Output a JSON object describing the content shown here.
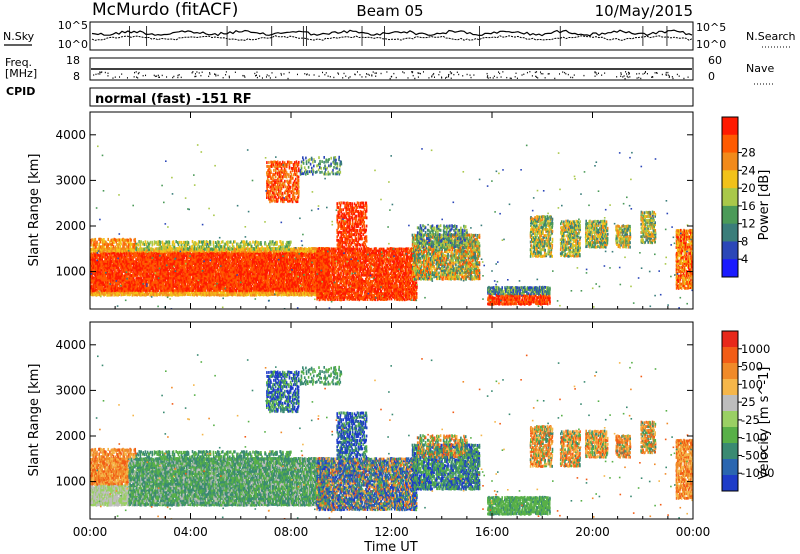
{
  "header": {
    "station": "McMurdo (fitACF)",
    "beam": "Beam 05",
    "date": "10/May/2015",
    "mode": "normal (fast) -151 RF"
  },
  "side_labels": {
    "nsky": "N.Sky",
    "freq": "Freq.",
    "mhz": "[MHz]",
    "cpid": "CPID",
    "nsearch": "N.Search",
    "nave": "Nave"
  },
  "status_axes": {
    "nsky_ticks": [
      "10^5",
      "10^0"
    ],
    "nsearch_ticks": [
      "10^5",
      "10^0"
    ],
    "freq_ticks": [
      "18",
      "8"
    ],
    "nave_ticks": [
      "60",
      "0"
    ]
  },
  "chart_data": [
    {
      "type": "heatmap",
      "name": "power-panel",
      "title": "",
      "xlabel": "",
      "ylabel": "Slant Range [km]",
      "xlim": [
        0,
        24
      ],
      "ylim": [
        180,
        4500
      ],
      "y_ticks": [
        "1000",
        "2000",
        "3000",
        "4000"
      ],
      "colorbar": {
        "label": "Power [dB]",
        "ticks": [
          "4",
          "8",
          "12",
          "16",
          "20",
          "24",
          "28"
        ],
        "colors": [
          "#1b1bff",
          "#2b47b8",
          "#3a7d7a",
          "#4b9a58",
          "#a9c84a",
          "#f2c21a",
          "#f28a1a",
          "#ff5a00",
          "#ff1a00"
        ]
      }
    },
    {
      "type": "heatmap",
      "name": "velocity-panel",
      "title": "",
      "xlabel": "Time UT",
      "ylabel": "Slant Range [km]",
      "xlim": [
        0,
        24
      ],
      "ylim": [
        180,
        4500
      ],
      "x_ticks": [
        "00:00",
        "04:00",
        "08:00",
        "12:00",
        "16:00",
        "20:00",
        "00:00"
      ],
      "y_ticks": [
        "1000",
        "2000",
        "3000",
        "4000"
      ],
      "colorbar": {
        "label": "Velocity [m s^-1]",
        "ticks": [
          "1000",
          "500",
          "100",
          "25",
          "-25",
          "-100",
          "-500",
          "-1000"
        ],
        "colors": [
          "#1e3cc8",
          "#2a66b0",
          "#3a8a72",
          "#58b048",
          "#9ad064",
          "#bdbdbd",
          "#f5b64a",
          "#f08a28",
          "#f25c16",
          "#e8281a"
        ]
      }
    }
  ]
}
